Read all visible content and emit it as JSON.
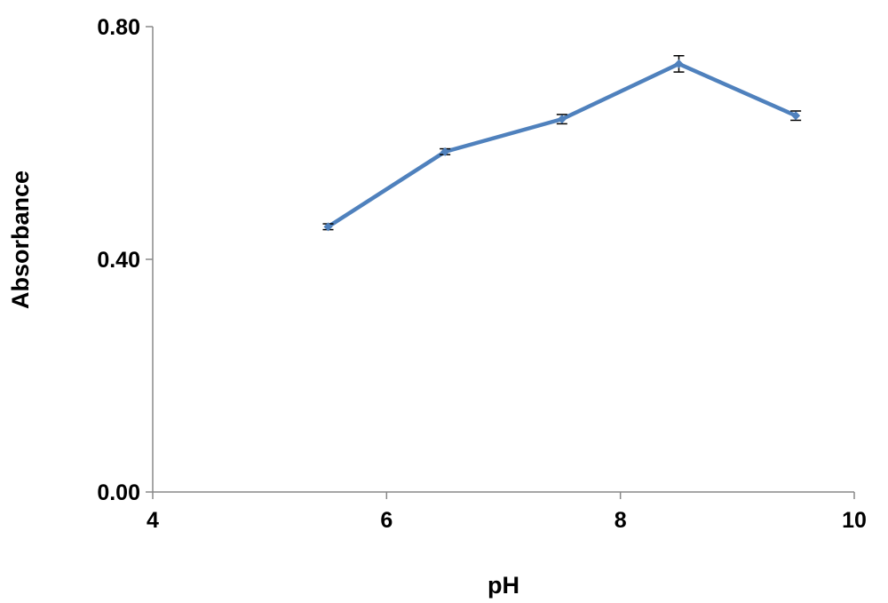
{
  "chart_data": {
    "type": "line",
    "x_label": "pH",
    "y_label": "Absorbance",
    "x": [
      5.5,
      6.5,
      7.5,
      8.5,
      9.5
    ],
    "values": [
      0.456,
      0.585,
      0.641,
      0.736,
      0.647
    ],
    "errors": [
      0.005,
      0.005,
      0.008,
      0.014,
      0.008
    ],
    "color": "#4f81bd",
    "xlim": [
      4,
      10
    ],
    "xticks": [
      4,
      6,
      8,
      10
    ],
    "ylim": [
      0,
      0.8
    ],
    "yticks": [
      {
        "value": 0,
        "label": "0.00"
      },
      {
        "value": 0.4,
        "label": "0.40"
      },
      {
        "value": 0.8,
        "label": "0.80"
      }
    ],
    "grid": false
  }
}
